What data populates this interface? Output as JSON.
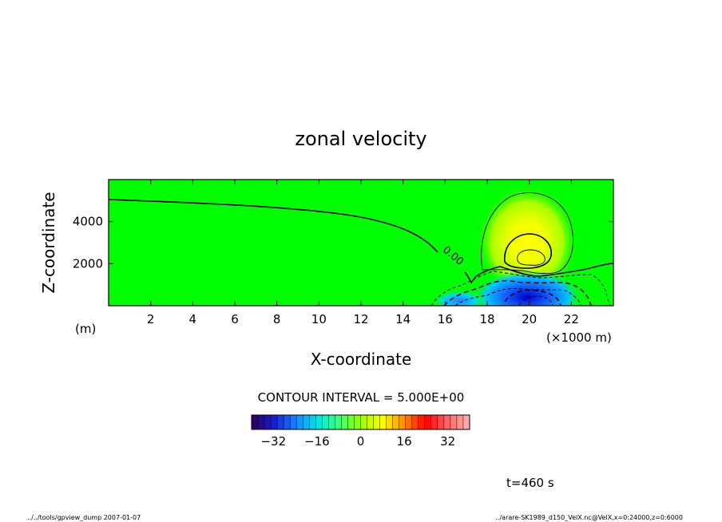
{
  "chart_data": {
    "type": "heatmap",
    "title": "zonal velocity",
    "xlabel": "X-coordinate",
    "ylabel": "Z-coordinate",
    "xunit": "(×1000 m)",
    "yunit": "(m)",
    "xlim": [
      0,
      24000
    ],
    "ylim": [
      0,
      6000
    ],
    "xticks": [
      2,
      4,
      6,
      8,
      10,
      12,
      14,
      16,
      18,
      20,
      22
    ],
    "yticks": [
      2000,
      4000
    ],
    "contour_interval_text": "CONTOUR INTERVAL = 5.000E+00",
    "zero_contour_label": "0.00",
    "colorbar": {
      "min": -40,
      "max": 40,
      "ticks": [
        -32,
        -16,
        0,
        16,
        32
      ]
    },
    "features": [
      {
        "kind": "positive maximum",
        "x": 20000,
        "z": 2300,
        "approx_value": 12
      },
      {
        "kind": "negative minimum",
        "x": 20500,
        "z": 500,
        "approx_value": -20
      }
    ],
    "time_label": "t=460 s",
    "footer_left": "../../tools/gpview_dump  2007-01-07",
    "footer_right": "../arare-SK1989_d150_VelX.nc@VelX,x=0:24000,z=0:6000"
  },
  "colors": {
    "background": "#00ff00",
    "colormap": [
      "#2b005a",
      "#1a1acc",
      "#1a7fff",
      "#00e5e5",
      "#3dff7a",
      "#9aff00",
      "#ffff00",
      "#ff8c00",
      "#ff0000",
      "#ff6666",
      "#ffb3b3"
    ]
  }
}
